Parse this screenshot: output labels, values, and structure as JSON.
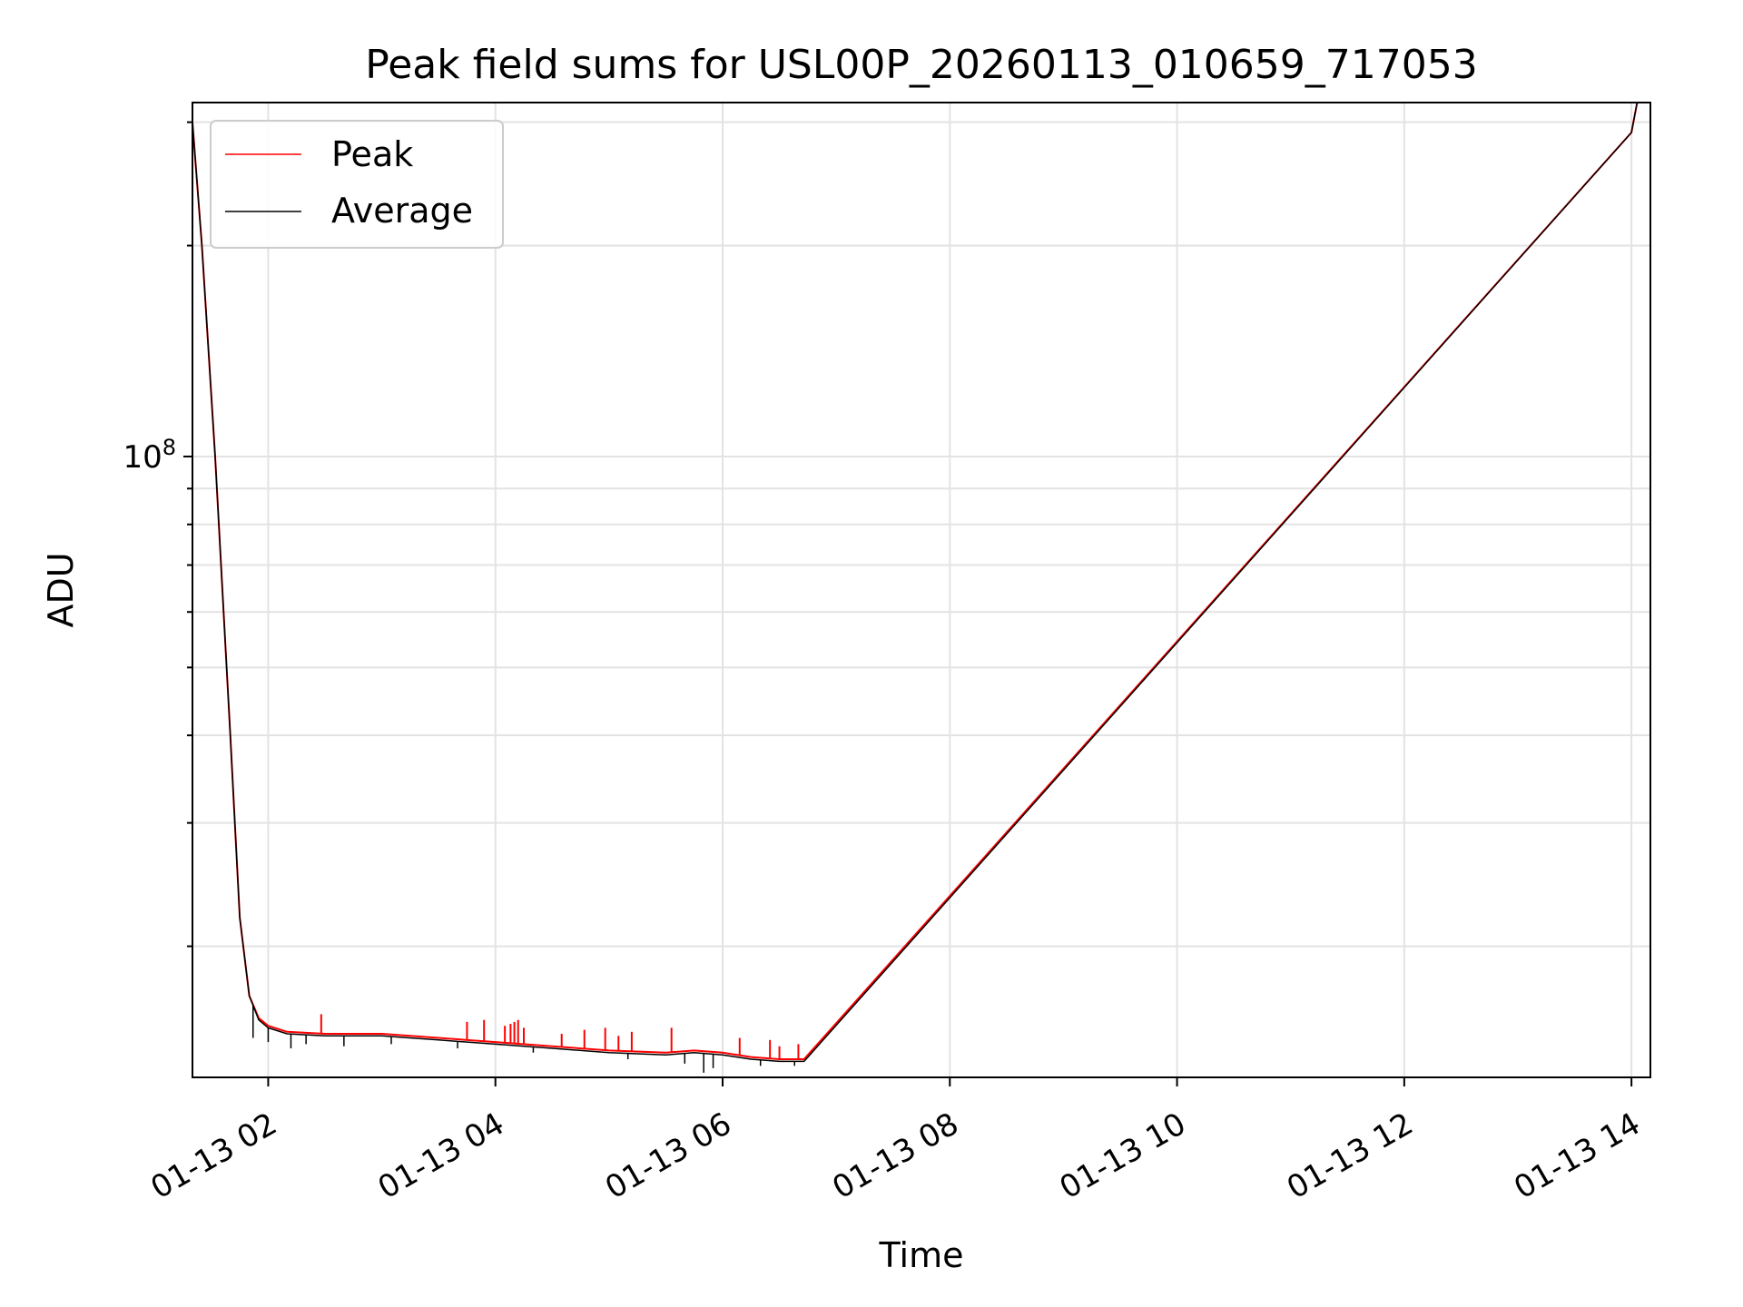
{
  "chart_data": {
    "type": "line",
    "title": "Peak field sums for USL00P_20260113_010659_717053",
    "xlabel": "Time",
    "ylabel": "ADU",
    "y_scale": "log",
    "xlim": [
      "2026-01-13T01:20",
      "2026-01-13T14:10"
    ],
    "ylim": [
      13000000,
      320000000
    ],
    "grid": true,
    "legend_position": "top-left",
    "x_ticks": [
      {
        "value": "2026-01-13T02:00",
        "label": "01-13 02"
      },
      {
        "value": "2026-01-13T04:00",
        "label": "01-13 04"
      },
      {
        "value": "2026-01-13T06:00",
        "label": "01-13 06"
      },
      {
        "value": "2026-01-13T08:00",
        "label": "01-13 08"
      },
      {
        "value": "2026-01-13T10:00",
        "label": "01-13 10"
      },
      {
        "value": "2026-01-13T12:00",
        "label": "01-13 12"
      },
      {
        "value": "2026-01-13T14:00",
        "label": "01-13 14"
      }
    ],
    "y_major_ticks": [
      {
        "value": 100000000,
        "base": "10",
        "exp": "8"
      }
    ],
    "y_minor_ticks": [
      20000000,
      30000000,
      40000000,
      50000000,
      60000000,
      70000000,
      80000000,
      90000000,
      200000000,
      300000000
    ],
    "series": [
      {
        "name": "Peak",
        "color": "#ff0000",
        "x": [
          "2026-01-13T01:20",
          "2026-01-13T01:25",
          "2026-01-13T01:32",
          "2026-01-13T01:40",
          "2026-01-13T01:45",
          "2026-01-13T01:50",
          "2026-01-13T01:55",
          "2026-01-13T02:00",
          "2026-01-13T02:10",
          "2026-01-13T02:30",
          "2026-01-13T03:00",
          "2026-01-13T03:30",
          "2026-01-13T04:00",
          "2026-01-13T04:30",
          "2026-01-13T05:00",
          "2026-01-13T05:30",
          "2026-01-13T05:45",
          "2026-01-13T06:00",
          "2026-01-13T06:15",
          "2026-01-13T06:30",
          "2026-01-13T06:43",
          "2026-01-13T14:00",
          "2026-01-13T14:03"
        ],
        "y": [
          300000000,
          200000000,
          100000000,
          40000000,
          22000000,
          17000000,
          15800000,
          15400000,
          15100000,
          15000000,
          15000000,
          14800000,
          14600000,
          14400000,
          14200000,
          14100000,
          14200000,
          14100000,
          13900000,
          13800000,
          13800000,
          290000000,
          320000000
        ],
        "spikes": [
          {
            "x": "2026-01-13T02:28",
            "y": 16000000
          },
          {
            "x": "2026-01-13T03:45",
            "y": 15600000
          },
          {
            "x": "2026-01-13T03:54",
            "y": 15700000
          },
          {
            "x": "2026-01-13T04:05",
            "y": 15400000
          },
          {
            "x": "2026-01-13T04:08",
            "y": 15500000
          },
          {
            "x": "2026-01-13T04:10",
            "y": 15600000
          },
          {
            "x": "2026-01-13T04:12",
            "y": 15700000
          },
          {
            "x": "2026-01-13T04:15",
            "y": 15300000
          },
          {
            "x": "2026-01-13T04:35",
            "y": 15000000
          },
          {
            "x": "2026-01-13T04:47",
            "y": 15200000
          },
          {
            "x": "2026-01-13T04:58",
            "y": 15300000
          },
          {
            "x": "2026-01-13T05:05",
            "y": 14900000
          },
          {
            "x": "2026-01-13T05:12",
            "y": 15100000
          },
          {
            "x": "2026-01-13T05:33",
            "y": 15300000
          },
          {
            "x": "2026-01-13T06:09",
            "y": 14800000
          },
          {
            "x": "2026-01-13T06:25",
            "y": 14700000
          },
          {
            "x": "2026-01-13T06:30",
            "y": 14400000
          },
          {
            "x": "2026-01-13T06:40",
            "y": 14500000
          }
        ]
      },
      {
        "name": "Average",
        "color": "#000000",
        "x": [
          "2026-01-13T01:20",
          "2026-01-13T01:25",
          "2026-01-13T01:32",
          "2026-01-13T01:40",
          "2026-01-13T01:45",
          "2026-01-13T01:50",
          "2026-01-13T01:55",
          "2026-01-13T02:00",
          "2026-01-13T02:10",
          "2026-01-13T02:30",
          "2026-01-13T03:00",
          "2026-01-13T03:30",
          "2026-01-13T04:00",
          "2026-01-13T04:30",
          "2026-01-13T05:00",
          "2026-01-13T05:30",
          "2026-01-13T05:45",
          "2026-01-13T06:00",
          "2026-01-13T06:15",
          "2026-01-13T06:30",
          "2026-01-13T06:43",
          "2026-01-13T14:00",
          "2026-01-13T14:03"
        ],
        "y": [
          300000000,
          200000000,
          100000000,
          40000000,
          22000000,
          17000000,
          15700000,
          15300000,
          15000000,
          14900000,
          14900000,
          14700000,
          14500000,
          14300000,
          14100000,
          14000000,
          14100000,
          14000000,
          13800000,
          13700000,
          13700000,
          290000000,
          320000000
        ],
        "dips": [
          {
            "x": "2026-01-13T01:52",
            "y": 14800000
          },
          {
            "x": "2026-01-13T02:00",
            "y": 14600000
          },
          {
            "x": "2026-01-13T02:12",
            "y": 14300000
          },
          {
            "x": "2026-01-13T02:20",
            "y": 14500000
          },
          {
            "x": "2026-01-13T02:40",
            "y": 14400000
          },
          {
            "x": "2026-01-13T03:05",
            "y": 14500000
          },
          {
            "x": "2026-01-13T03:40",
            "y": 14300000
          },
          {
            "x": "2026-01-13T04:20",
            "y": 14100000
          },
          {
            "x": "2026-01-13T05:10",
            "y": 13800000
          },
          {
            "x": "2026-01-13T05:40",
            "y": 13600000
          },
          {
            "x": "2026-01-13T05:50",
            "y": 13200000
          },
          {
            "x": "2026-01-13T05:55",
            "y": 13400000
          },
          {
            "x": "2026-01-13T06:20",
            "y": 13500000
          },
          {
            "x": "2026-01-13T06:38",
            "y": 13500000
          }
        ]
      }
    ]
  }
}
